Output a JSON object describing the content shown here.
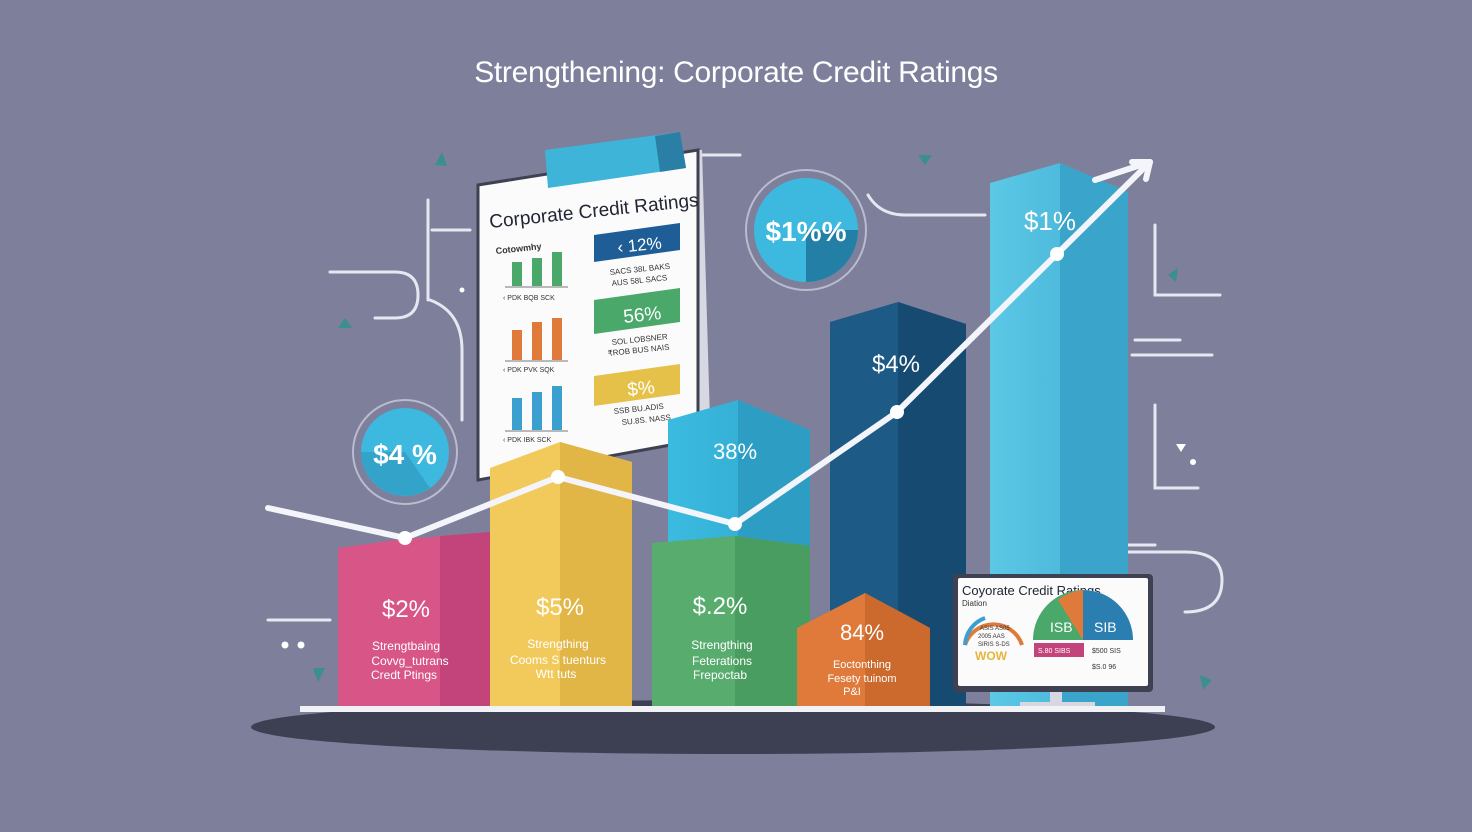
{
  "page_title": "Strengthening: Corporate Credit Ratings",
  "colors": {
    "background": "#7d7f9b",
    "pink": "#d85587",
    "yellow": "#f2ca5c",
    "teal_blue": "#38b3d9",
    "green": "#58ad6e",
    "navy": "#1d5a86",
    "orange": "#df7a3a",
    "light_blue": "#52bfdd",
    "platform": "#3d3f52"
  },
  "bars": [
    {
      "value_label": "$2%",
      "caption_lines": [
        "Strengtbaing",
        "Covvg_tutrans",
        "Credt Ptings"
      ]
    },
    {
      "value_label": "$5%",
      "caption_lines": [
        "Strengthing",
        "Cooms S tuenturs",
        "Wtt tuts"
      ]
    },
    {
      "value_label": "38%",
      "caption_lines": []
    },
    {
      "value_label": "$.2%",
      "caption_lines": [
        "Strengthing",
        "Feterations",
        "Frepoctab"
      ]
    },
    {
      "value_label": "84%",
      "caption_lines": [
        "Eoctonthing",
        "Fesety tuinom",
        "P&I"
      ]
    },
    {
      "value_label": "$4%",
      "caption_lines": []
    },
    {
      "value_label": "$1%",
      "caption_lines": []
    }
  ],
  "bubbles": [
    {
      "label": "$4 %"
    },
    {
      "label": "$1%%"
    }
  ],
  "clipboard": {
    "title": "Corporate Credit Ratings",
    "subtitle": "Cotowmhy",
    "mini_chart_labels": [
      "‹ PDK  BQB  SCK",
      "‹ PDK  PVK  SQK",
      "‹ PDK  IBK  SCK"
    ],
    "stats": [
      {
        "value": "‹ 12%",
        "lines": [
          "SACS  38L  BAKS",
          "AUS  58L  SACS"
        ]
      },
      {
        "value": "56%",
        "lines": [
          "SOL  LOBSNER",
          "₹ROB  BUS  NAIS"
        ]
      },
      {
        "value": "$%",
        "lines": [
          "SSB  BU.ADIS",
          "SU.8S.  NASS"
        ]
      }
    ]
  },
  "monitor": {
    "title": "Coyorate Credit Ratings",
    "subtitle": "Diation",
    "gauge_labels": [
      "ISB",
      "SIB"
    ],
    "small_text": [
      "ASIS AS05",
      "2005 AAS",
      "SIRIS S-DS"
    ],
    "bottom_labels": [
      "S.80 SIBS",
      "$500 SIS",
      "$S.0 96"
    ],
    "wow": "WOW"
  }
}
